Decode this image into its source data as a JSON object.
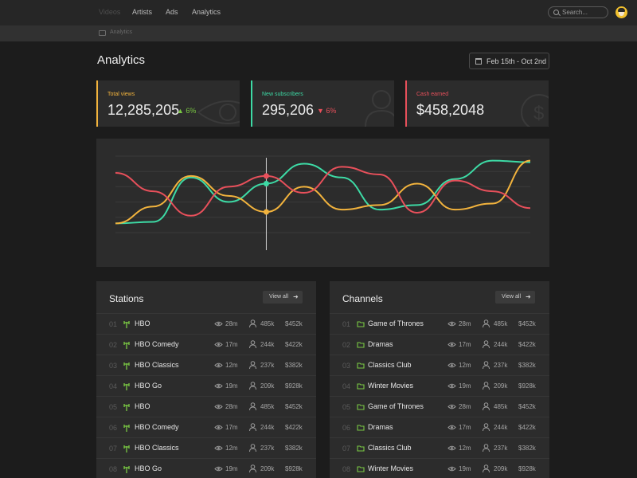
{
  "nav": {
    "items": [
      {
        "label": "Videos",
        "active": true
      },
      {
        "label": "Artists",
        "active": false
      },
      {
        "label": "Ads",
        "active": false
      },
      {
        "label": "Analytics",
        "active": false
      }
    ],
    "search_placeholder": "Search...",
    "avatar_icon": "user-avatar"
  },
  "breadcrumb": {
    "icon": "folder-icon",
    "label": "Analytics"
  },
  "page": {
    "title": "Analytics",
    "date_range": "Feb 15th - Oct 2nd",
    "date_icon": "calendar-icon"
  },
  "stats": [
    {
      "label": "Total views",
      "value": "12,285,205",
      "change": "6%",
      "direction": "up",
      "color": "#f2b33d",
      "change_color": "#7ac943",
      "icon": "eye-icon"
    },
    {
      "label": "New subscribers",
      "value": "295,206",
      "change": "6%",
      "direction": "down",
      "color": "#3ddaa5",
      "change_color": "#e8505b",
      "icon": "user-icon"
    },
    {
      "label": "Cash earned",
      "value": "$458,2048",
      "color": "#e8505b",
      "icon": "dollar-icon"
    }
  ],
  "chart_data": {
    "type": "line",
    "grid": true,
    "series": [
      {
        "color": "#3ddaa5",
        "values": [
          10,
          12,
          70,
          38,
          62,
          88,
          70,
          28,
          34,
          68,
          92,
          90
        ]
      },
      {
        "color": "#f2b33d",
        "values": [
          10,
          32,
          72,
          46,
          25,
          58,
          28,
          34,
          62,
          28,
          36,
          92
        ]
      },
      {
        "color": "#e8505b",
        "values": [
          76,
          52,
          20,
          58,
          72,
          50,
          84,
          74,
          24,
          66,
          52,
          30
        ]
      }
    ],
    "highlight_color": "#cfcfcf",
    "ylim": [
      0,
      100
    ]
  },
  "stations": {
    "title": "Stations",
    "view_all": "View all",
    "row_icon": "antenna-icon",
    "rows": [
      {
        "num": "01",
        "name": "HBO",
        "views": "28m",
        "subs": "485k",
        "cash": "$452k"
      },
      {
        "num": "02",
        "name": "HBO Comedy",
        "views": "17m",
        "subs": "244k",
        "cash": "$422k"
      },
      {
        "num": "03",
        "name": "HBO Classics",
        "views": "12m",
        "subs": "237k",
        "cash": "$382k"
      },
      {
        "num": "04",
        "name": "HBO Go",
        "views": "19m",
        "subs": "209k",
        "cash": "$928k"
      },
      {
        "num": "05",
        "name": "HBO",
        "views": "28m",
        "subs": "485k",
        "cash": "$452k"
      },
      {
        "num": "06",
        "name": "HBO Comedy",
        "views": "17m",
        "subs": "244k",
        "cash": "$422k"
      },
      {
        "num": "07",
        "name": "HBO Classics",
        "views": "12m",
        "subs": "237k",
        "cash": "$382k"
      },
      {
        "num": "08",
        "name": "HBO Go",
        "views": "19m",
        "subs": "209k",
        "cash": "$928k"
      }
    ]
  },
  "channels": {
    "title": "Channels",
    "view_all": "View all",
    "row_icon": "folder-icon",
    "rows": [
      {
        "num": "01",
        "name": "Game of Thrones",
        "views": "28m",
        "subs": "485k",
        "cash": "$452k"
      },
      {
        "num": "02",
        "name": "Dramas",
        "views": "17m",
        "subs": "244k",
        "cash": "$422k"
      },
      {
        "num": "03",
        "name": "Classics Club",
        "views": "12m",
        "subs": "237k",
        "cash": "$382k"
      },
      {
        "num": "04",
        "name": "Winter Movies",
        "views": "19m",
        "subs": "209k",
        "cash": "$928k"
      },
      {
        "num": "05",
        "name": "Game of Thrones",
        "views": "28m",
        "subs": "485k",
        "cash": "$452k"
      },
      {
        "num": "06",
        "name": "Dramas",
        "views": "17m",
        "subs": "244k",
        "cash": "$422k"
      },
      {
        "num": "07",
        "name": "Classics Club",
        "views": "12m",
        "subs": "237k",
        "cash": "$382k"
      },
      {
        "num": "08",
        "name": "Winter Movies",
        "views": "19m",
        "subs": "209k",
        "cash": "$928k"
      }
    ]
  },
  "colors": {
    "accent_green": "#7ac943",
    "background": "#1c1c1c",
    "panel": "#2c2c2c"
  }
}
